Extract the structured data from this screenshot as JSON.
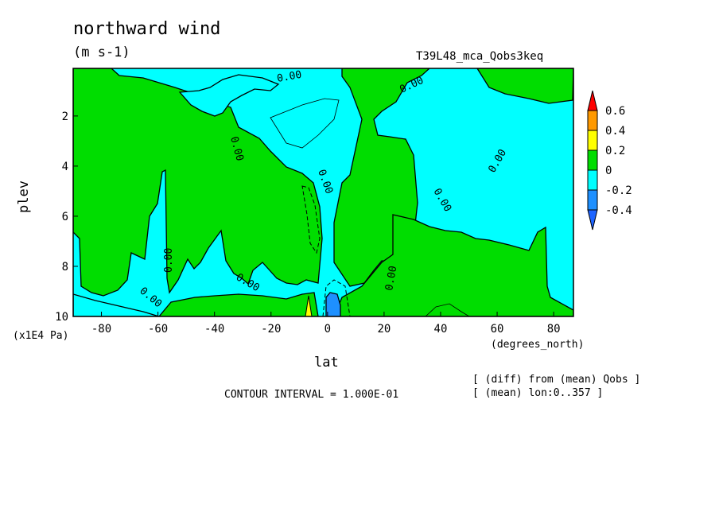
{
  "chart_data": {
    "type": "heatmap",
    "title": "northward wind",
    "units": "(m s-1)",
    "run_label": "T39L48_mca_Qobs3keq",
    "xlabel": "lat",
    "x_unit": "(degrees_north)",
    "ylabel": "plev",
    "y_unit": "(x1E4 Pa)",
    "xlim": [
      -90,
      87
    ],
    "ylim": [
      0.1,
      10
    ],
    "y_inverted": true,
    "x_ticks": [
      "-80",
      "-60",
      "-40",
      "-20",
      "0",
      "20",
      "40",
      "60",
      "80"
    ],
    "x_tick_values": [
      -80,
      -60,
      -40,
      -20,
      0,
      20,
      40,
      60,
      80
    ],
    "y_ticks": [
      "2",
      "4",
      "6",
      "8",
      "10"
    ],
    "y_tick_values": [
      2,
      4,
      6,
      8,
      10
    ],
    "contour_interval_text": "CONTOUR INTERVAL = 1.000E-01",
    "contour_label": "0.00",
    "diff_note": "[ (diff) from (mean) Qobs ]",
    "mean_note": "[ (mean) lon:0..357 ]",
    "colorbar": {
      "labels": [
        "0.6",
        "0.4",
        "0.2",
        "0",
        "-0.2",
        "-0.4"
      ],
      "colors": [
        "#ff0000",
        "#ff9900",
        "#ffff00",
        "#00dd00",
        "#00ffff",
        "#1e90ff",
        "#1e64ff"
      ]
    }
  }
}
